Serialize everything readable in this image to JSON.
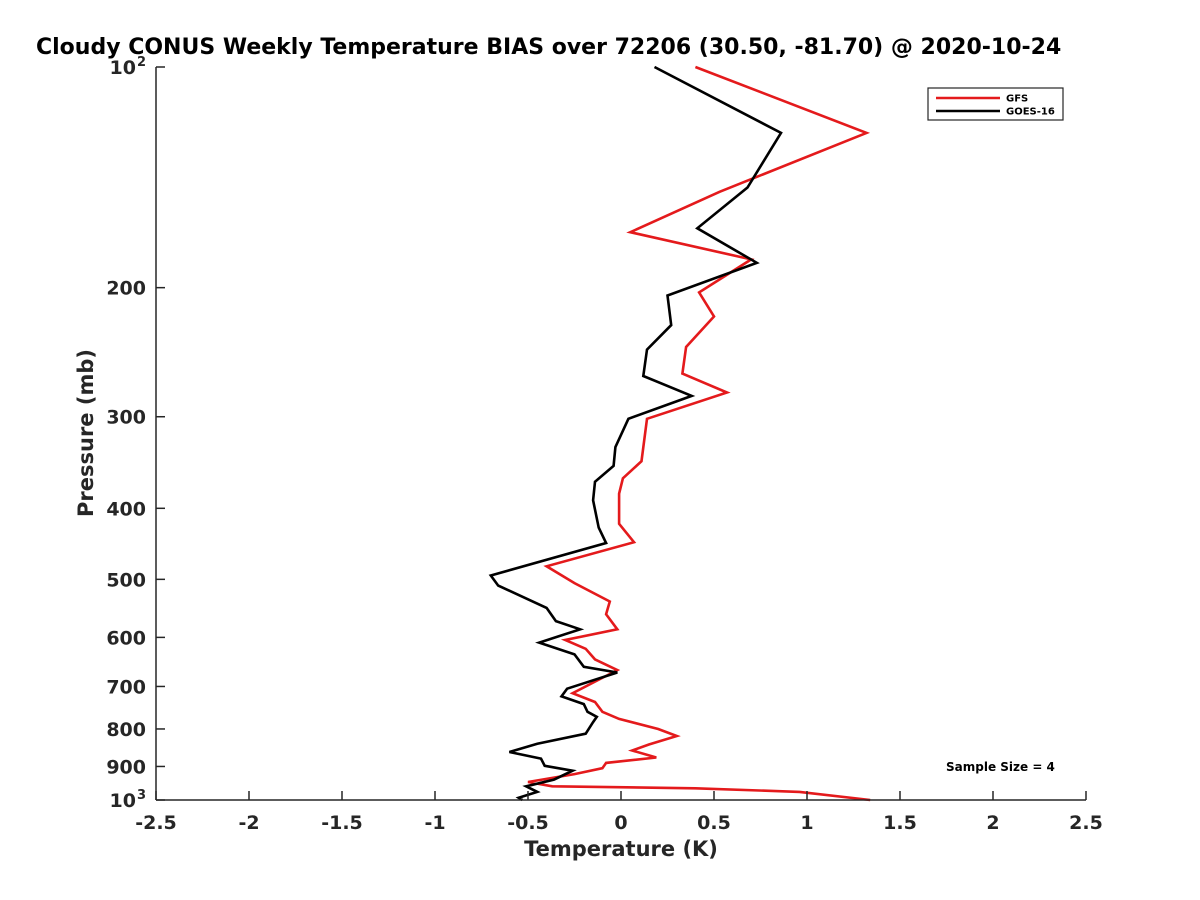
{
  "chart_data": {
    "type": "line",
    "title": "Cloudy CONUS Weekly Temperature BIAS over 72206 (30.50, -81.70) @ 2020-10-24",
    "xlabel": "Temperature (K)",
    "ylabel": "Pressure (mb)",
    "xlim": [
      -2.5,
      2.5
    ],
    "ylim": [
      100,
      1000
    ],
    "y_scale": "log",
    "y_reversed": true,
    "grid": false,
    "legend_position": "top-right",
    "x_ticks": [
      {
        "value": -2.5,
        "label": "-2.5"
      },
      {
        "value": -2,
        "label": "-2"
      },
      {
        "value": -1.5,
        "label": "-1.5"
      },
      {
        "value": -1,
        "label": "-1"
      },
      {
        "value": -0.5,
        "label": "-0.5"
      },
      {
        "value": 0,
        "label": "0"
      },
      {
        "value": 0.5,
        "label": "0.5"
      },
      {
        "value": 1,
        "label": "1"
      },
      {
        "value": 1.5,
        "label": "1.5"
      },
      {
        "value": 2,
        "label": "2"
      },
      {
        "value": 2.5,
        "label": "2.5"
      }
    ],
    "y_ticks": [
      {
        "value": 100,
        "label": "10",
        "sup": "2"
      },
      {
        "value": 200,
        "label": "200",
        "sup": ""
      },
      {
        "value": 300,
        "label": "300",
        "sup": ""
      },
      {
        "value": 400,
        "label": "400",
        "sup": ""
      },
      {
        "value": 500,
        "label": "500",
        "sup": ""
      },
      {
        "value": 600,
        "label": "600",
        "sup": ""
      },
      {
        "value": 700,
        "label": "700",
        "sup": ""
      },
      {
        "value": 800,
        "label": "800",
        "sup": ""
      },
      {
        "value": 900,
        "label": "900",
        "sup": ""
      },
      {
        "value": 1000,
        "label": "10",
        "sup": "3"
      }
    ],
    "annotation": "Sample Size = 4",
    "series": [
      {
        "name": "GFS",
        "color": "#e41a1c",
        "points": [
          [
            0.4,
            100
          ],
          [
            1.32,
            123
          ],
          [
            0.53,
            148
          ],
          [
            0.05,
            168
          ],
          [
            0.7,
            183
          ],
          [
            0.42,
            203
          ],
          [
            0.5,
            219
          ],
          [
            0.35,
            241
          ],
          [
            0.33,
            262
          ],
          [
            0.57,
            278
          ],
          [
            0.14,
            302
          ],
          [
            0.11,
            345
          ],
          [
            0.01,
            364
          ],
          [
            -0.01,
            382
          ],
          [
            -0.01,
            420
          ],
          [
            0.07,
            445
          ],
          [
            -0.4,
            480
          ],
          [
            -0.25,
            506
          ],
          [
            -0.06,
            536
          ],
          [
            -0.08,
            558
          ],
          [
            -0.02,
            585
          ],
          [
            -0.3,
            605
          ],
          [
            -0.19,
            622
          ],
          [
            -0.14,
            643
          ],
          [
            -0.02,
            665
          ],
          [
            -0.26,
            715
          ],
          [
            -0.14,
            735
          ],
          [
            -0.1,
            758
          ],
          [
            -0.01,
            775
          ],
          [
            0.2,
            800
          ],
          [
            0.3,
            818
          ],
          [
            0.15,
            840
          ],
          [
            0.06,
            856
          ],
          [
            0.19,
            875
          ],
          [
            -0.08,
            890
          ],
          [
            -0.1,
            905
          ],
          [
            -0.25,
            922
          ],
          [
            -0.5,
            945
          ],
          [
            -0.37,
            958
          ],
          [
            0.4,
            964
          ],
          [
            0.96,
            975
          ],
          [
            1.34,
            1000
          ]
        ]
      },
      {
        "name": "GOES-16",
        "color": "#000000",
        "points": [
          [
            0.18,
            100
          ],
          [
            0.86,
            123
          ],
          [
            0.68,
            146
          ],
          [
            0.41,
            166
          ],
          [
            0.73,
            185
          ],
          [
            0.25,
            205
          ],
          [
            0.27,
            225
          ],
          [
            0.14,
            243
          ],
          [
            0.12,
            264
          ],
          [
            0.38,
            281
          ],
          [
            0.04,
            302
          ],
          [
            -0.03,
            330
          ],
          [
            -0.04,
            350
          ],
          [
            -0.14,
            368
          ],
          [
            -0.15,
            390
          ],
          [
            -0.12,
            425
          ],
          [
            -0.08,
            446
          ],
          [
            -0.7,
            494
          ],
          [
            -0.66,
            510
          ],
          [
            -0.4,
            547
          ],
          [
            -0.35,
            570
          ],
          [
            -0.22,
            585
          ],
          [
            -0.44,
            610
          ],
          [
            -0.25,
            633
          ],
          [
            -0.2,
            658
          ],
          [
            -0.02,
            670
          ],
          [
            -0.29,
            705
          ],
          [
            -0.32,
            722
          ],
          [
            -0.2,
            740
          ],
          [
            -0.18,
            758
          ],
          [
            -0.13,
            770
          ],
          [
            -0.15,
            783
          ],
          [
            -0.19,
            812
          ],
          [
            -0.45,
            838
          ],
          [
            -0.6,
            860
          ],
          [
            -0.43,
            878
          ],
          [
            -0.41,
            898
          ],
          [
            -0.26,
            912
          ],
          [
            -0.36,
            938
          ],
          [
            -0.51,
            958
          ],
          [
            -0.45,
            975
          ],
          [
            -0.55,
            993
          ],
          [
            -0.53,
            1000
          ]
        ]
      }
    ]
  }
}
